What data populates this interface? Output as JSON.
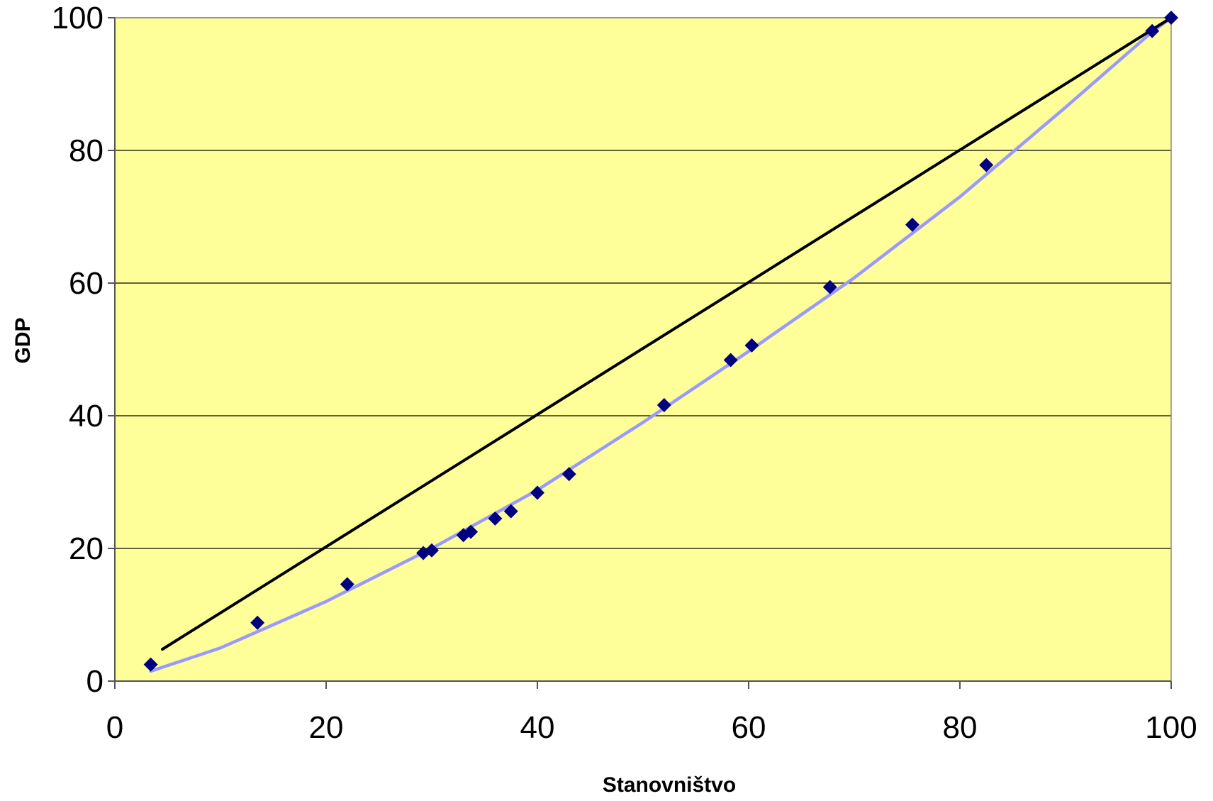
{
  "chart_data": {
    "type": "scatter",
    "title": "",
    "xlabel": "Stanovništvo",
    "ylabel": "GDP",
    "xlim": [
      0,
      100
    ],
    "ylim": [
      0,
      100
    ],
    "x_ticks": [
      "0",
      "20",
      "40",
      "60",
      "80",
      "100"
    ],
    "y_ticks": [
      "0",
      "20",
      "40",
      "60",
      "80",
      "100"
    ],
    "grid": "horizontal",
    "legend": "none",
    "plot_background": "#FFFF99",
    "series": [
      {
        "kind": "scatter",
        "color": "#000080",
        "marker": "diamond",
        "points": [
          [
            3.4,
            2.5
          ],
          [
            13.5,
            8.8
          ],
          [
            22.0,
            14.6
          ],
          [
            29.2,
            19.3
          ],
          [
            30.0,
            19.7
          ],
          [
            33.0,
            22.0
          ],
          [
            33.7,
            22.5
          ],
          [
            36.0,
            24.5
          ],
          [
            37.5,
            25.6
          ],
          [
            40.0,
            28.4
          ],
          [
            43.0,
            31.2
          ],
          [
            52.0,
            41.6
          ],
          [
            58.3,
            48.4
          ],
          [
            60.3,
            50.6
          ],
          [
            67.7,
            59.4
          ],
          [
            75.5,
            68.8
          ],
          [
            82.5,
            77.8
          ],
          [
            98.2,
            98.0
          ],
          [
            100.0,
            100.0
          ]
        ]
      },
      {
        "kind": "line",
        "color": "#9999FF",
        "points": [
          [
            3.4,
            1.5
          ],
          [
            10.0,
            5.0
          ],
          [
            20.0,
            12.0
          ],
          [
            30.0,
            20.0
          ],
          [
            40.0,
            28.8
          ],
          [
            50.0,
            39.0
          ],
          [
            60.0,
            49.7
          ],
          [
            70.0,
            60.8
          ],
          [
            80.0,
            73.0
          ],
          [
            90.0,
            86.5
          ],
          [
            98.0,
            97.6
          ],
          [
            100.0,
            100.0
          ]
        ]
      },
      {
        "kind": "line",
        "color": "#000000",
        "points": [
          [
            4.5,
            4.8
          ],
          [
            100.0,
            100.0
          ]
        ]
      }
    ]
  }
}
